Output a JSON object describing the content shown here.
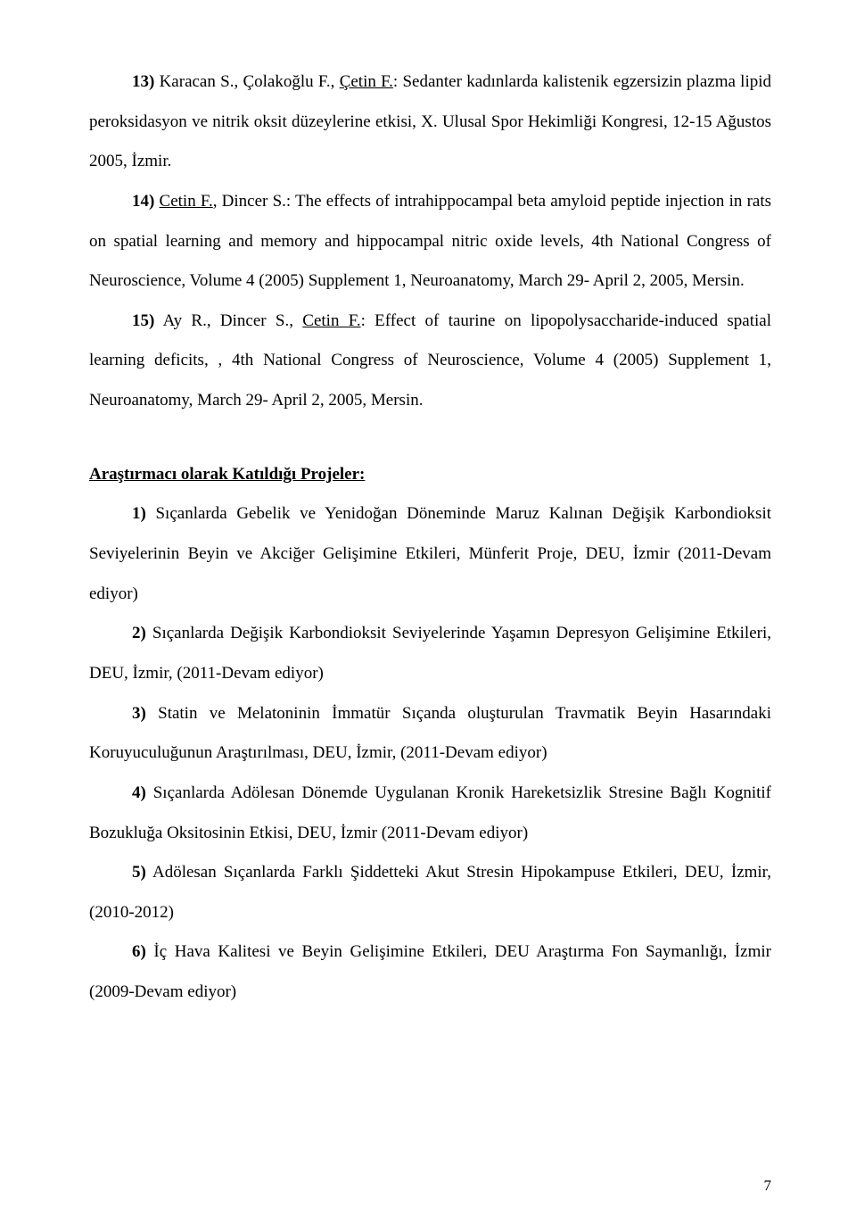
{
  "refs": {
    "r13": {
      "num": "13)",
      "authors_plain": " Karacan S., Çolakoğlu F., ",
      "author_under": "Çetin F.",
      "tail": ": Sedanter kadınlarda kalistenik egzersizin plazma lipid peroksidasyon ve nitrik oksit düzeylerine etkisi, X. Ulusal Spor Hekimliği Kongresi, 12-15 Ağustos 2005, İzmir."
    },
    "r14": {
      "num": "14)",
      "author_under": "Cetin F.",
      "tail_a": ", Dincer S.: The effects of intrahippocampal beta amyloid peptide injection in rats on spatial learning and memory and hippocampal nitric oxide levels, 4th National Congress of Neuroscience, Volume 4 (2005) Supplement 1, Neuroanatomy, March 29- April 2, 2005, Mersin."
    },
    "r15": {
      "num": "15)",
      "plain_a": " Ay R., Dincer S., ",
      "under": "Cetin F.",
      "tail": ":  Effect of taurine on lipopolysaccharide-induced spatial learning deficits, , 4th National Congress of Neuroscience, Volume 4 (2005) Supplement 1, Neuroanatomy, March 29- April 2, 2005, Mersin."
    }
  },
  "section_heading": "Araştırmacı olarak Katıldığı Projeler:",
  "projects": {
    "p1": {
      "num": "1)",
      "text": " Sıçanlarda Gebelik ve Yenidoğan Döneminde Maruz Kalınan Değişik Karbondioksit Seviyelerinin Beyin ve Akciğer Gelişimine Etkileri, Münferit Proje, DEU, İzmir (2011-Devam ediyor)"
    },
    "p2": {
      "num": "2)",
      "text": " Sıçanlarda Değişik Karbondioksit Seviyelerinde Yaşamın Depresyon Gelişimine Etkileri, DEU, İzmir, (2011-Devam ediyor)"
    },
    "p3": {
      "num": "3)",
      "text": " Statin ve Melatoninin İmmatür Sıçanda oluşturulan Travmatik Beyin Hasarındaki Koruyuculuğunun Araştırılması, DEU, İzmir, (2011-Devam ediyor)"
    },
    "p4": {
      "num": "4)",
      "text": " Sıçanlarda Adölesan Dönemde Uygulanan Kronik Hareketsizlik Stresine Bağlı Kognitif Bozukluğa Oksitosinin Etkisi, DEU, İzmir (2011-Devam ediyor)"
    },
    "p5": {
      "num": "5)",
      "text": " Adölesan Sıçanlarda Farklı Şiddetteki Akut Stresin Hipokampuse Etkileri, DEU, İzmir, (2010-2012)"
    },
    "p6": {
      "num": "6)",
      "text": " İç Hava Kalitesi ve Beyin Gelişimine Etkileri, DEU Araştırma Fon Saymanlığı, İzmir (2009-Devam ediyor)"
    }
  },
  "page_number": "7"
}
